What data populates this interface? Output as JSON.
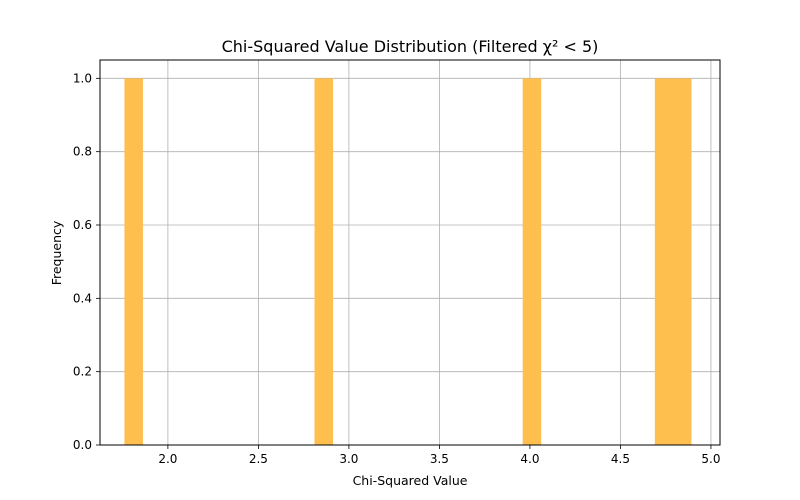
{
  "chart_data": {
    "type": "bar",
    "title": "Chi-Squared Value Distribution (Filtered χ² < 5)",
    "xlabel": "Chi-Squared Value",
    "ylabel": "Frequency",
    "xlim": [
      1.625,
      5.05
    ],
    "ylim": [
      0,
      1.05
    ],
    "xticks": [
      "2.0",
      "2.5",
      "3.0",
      "3.5",
      "4.0",
      "4.5",
      "5.0"
    ],
    "yticks": [
      "0.0",
      "0.2",
      "0.4",
      "0.6",
      "0.8",
      "1.0"
    ],
    "grid": true,
    "bar_color": "#ffbf4f",
    "bins": [
      {
        "x0": 1.76,
        "x1": 1.86,
        "count": 1
      },
      {
        "x0": 2.81,
        "x1": 2.91,
        "count": 1
      },
      {
        "x0": 3.96,
        "x1": 4.06,
        "count": 1
      },
      {
        "x0": 4.69,
        "x1": 4.79,
        "count": 1
      },
      {
        "x0": 4.79,
        "x1": 4.89,
        "count": 1
      }
    ]
  }
}
